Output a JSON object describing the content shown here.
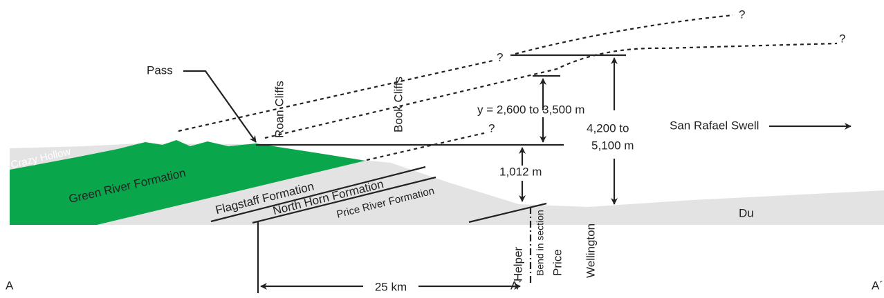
{
  "question_marks": [
    "?",
    "?",
    "?",
    "?"
  ],
  "labels": {
    "pass": "Pass",
    "roan_cliffs": "Roan Cliffs",
    "book_cliffs": "Book Cliffs",
    "y_range": "y = 2,600 to 3,500 m",
    "total_line1": "4,200 to",
    "total_line2": "5,100 m",
    "san_rafael": "San Rafael Swell",
    "crazy_hollow": "Crazy Hollow",
    "green_river": "Green River Formation",
    "flagstaff": "Flagstaff Formation",
    "north_horn": "North Horn Formation",
    "price_river": "Price River Formation",
    "thickness": "1,012 m",
    "du": "Du",
    "helper": "Helper",
    "bend": "Bend in section",
    "price": "Price",
    "wellington": "Wellington",
    "a_left": "A",
    "a_right": "A´",
    "a_mid": "A´",
    "distance": "25 km"
  }
}
